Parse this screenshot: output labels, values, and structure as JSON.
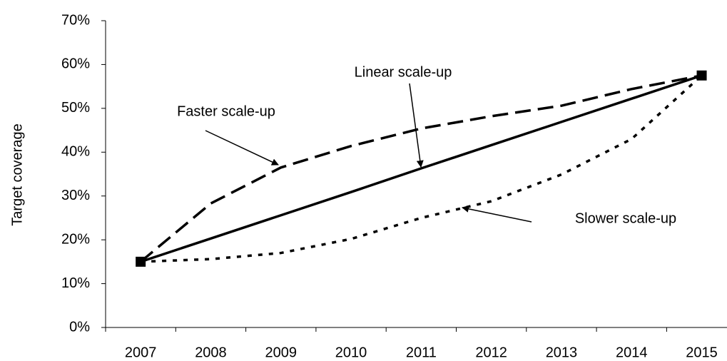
{
  "chart_data": {
    "type": "line",
    "y_label": "Target coverage",
    "categories": [
      "2007",
      "2008",
      "2009",
      "2010",
      "2011",
      "2012",
      "2013",
      "2014",
      "2015"
    ],
    "series": [
      {
        "name": "Linear scale-up",
        "color": "#000000",
        "style": "solid",
        "values": [
          15,
          20.3,
          25.6,
          30.9,
          36.3,
          41.6,
          46.9,
          52.2,
          57.5
        ]
      },
      {
        "name": "Faster scale-up",
        "color": "#000000",
        "style": "dashed",
        "values": [
          15,
          28.3,
          36.5,
          41.4,
          45.4,
          48.2,
          50.6,
          54.4,
          57.5
        ]
      },
      {
        "name": "Slower scale-up",
        "color": "#000000",
        "style": "dotted",
        "values": [
          15,
          15.6,
          17,
          20.2,
          25,
          28.8,
          34.9,
          43,
          57.5
        ]
      }
    ],
    "ylim": [
      0,
      70
    ],
    "yticks": [
      {
        "value": 0,
        "label": "0%"
      },
      {
        "value": 10,
        "label": "10%"
      },
      {
        "value": 20,
        "label": "20%"
      },
      {
        "value": 30,
        "label": "30%"
      },
      {
        "value": 40,
        "label": "40%"
      },
      {
        "value": 50,
        "label": "50%"
      },
      {
        "value": 60,
        "label": "60%"
      },
      {
        "value": 70,
        "label": "70%"
      }
    ],
    "grid": false
  }
}
